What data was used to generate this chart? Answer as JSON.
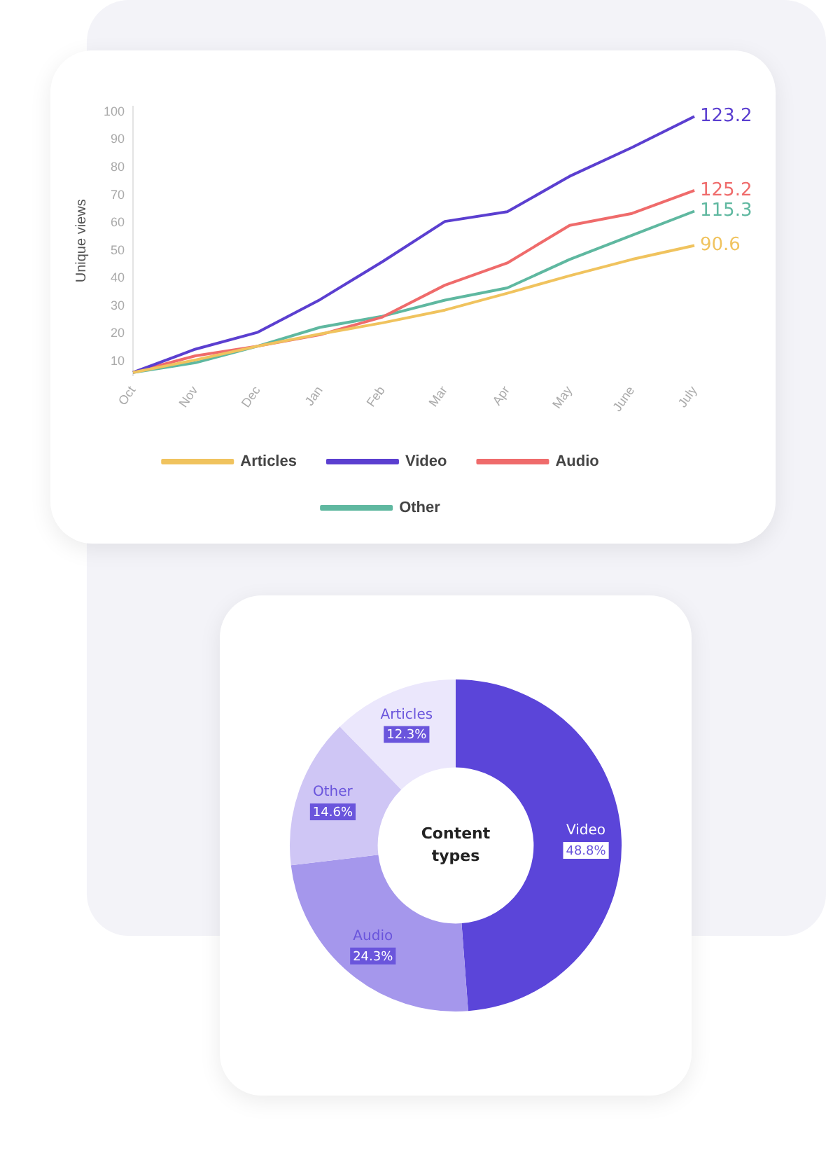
{
  "chart_data": [
    {
      "type": "line",
      "ylabel": "Unique views",
      "categories": [
        "Oct",
        "Nov",
        "Dec",
        "Jan",
        "Feb",
        "Mar",
        "Apr",
        "May",
        "June",
        "July"
      ],
      "series": [
        {
          "name": "Articles",
          "color": "#f0c35e",
          "values": [
            6,
            10.5,
            15.5,
            19.9,
            23.9,
            28.5,
            34.6,
            40.9,
            46.8,
            51.8
          ]
        },
        {
          "name": "Video",
          "color": "#5b3fd0",
          "values": [
            6,
            14.4,
            20.5,
            32.3,
            46,
            60.5,
            64,
            76.8,
            87.2,
            98.4
          ]
        },
        {
          "name": "Audio",
          "color": "#ef6b6b",
          "values": [
            6,
            12,
            15.5,
            19.6,
            26,
            37.5,
            45.5,
            59.1,
            63.4,
            71.7
          ]
        },
        {
          "name": "Other",
          "color": "#5fb8a0",
          "values": [
            6,
            9.5,
            15.5,
            22.3,
            26.3,
            32.1,
            36.5,
            46.8,
            55.5,
            64.2
          ]
        }
      ],
      "annotations": [
        {
          "text": "123.2",
          "x": "July",
          "y": 98.4
        },
        {
          "text": "125.2",
          "x": "July",
          "y": 71.7
        },
        {
          "text": "115.3",
          "x": "July",
          "y": 64.2
        },
        {
          "text": "90.6",
          "x": "July",
          "y": 51.8
        }
      ],
      "ylim": [
        5,
        102
      ],
      "yticks": [
        10,
        20,
        30,
        40,
        50,
        60,
        70,
        80,
        90,
        100
      ],
      "grid": false,
      "legend": "bottom",
      "marker": "none",
      "line_style": "solid"
    },
    {
      "type": "donut",
      "title": "Content types",
      "categories": [
        "Video",
        "Audio",
        "Other",
        "Articles"
      ],
      "values": [
        48.8,
        24.3,
        14.6,
        12.3
      ],
      "colors": [
        "#5b45d9",
        "#a597ec",
        "#cfc6f5",
        "#ebe7fc"
      ],
      "value_labels": [
        "48.8%",
        "24.3%",
        "14.6%",
        "12.3%"
      ]
    }
  ]
}
